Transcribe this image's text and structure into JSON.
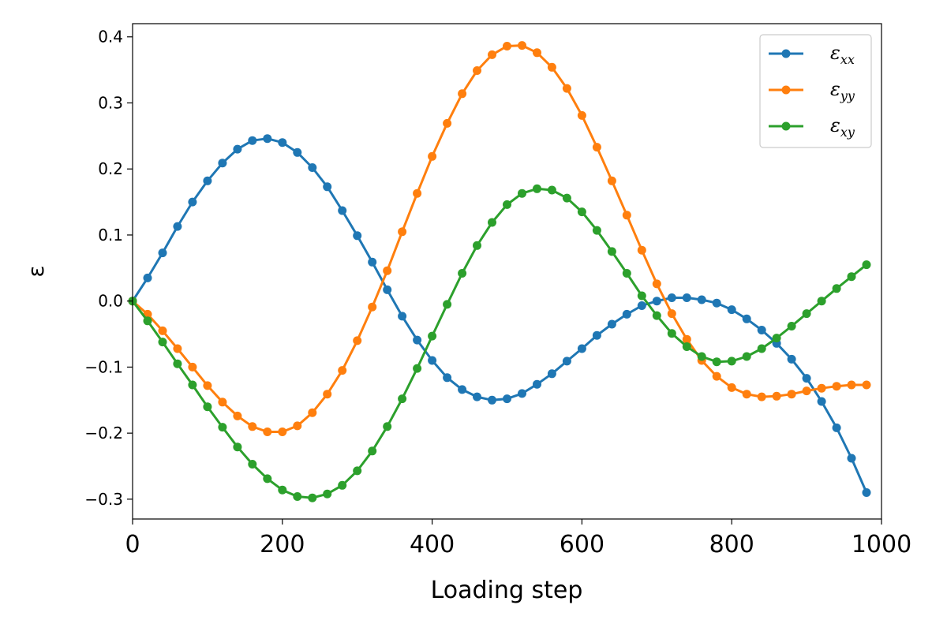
{
  "chart_data": {
    "type": "line",
    "title": "",
    "xlabel": "Loading step",
    "ylabel": "ε",
    "xlim": [
      0,
      1000
    ],
    "ylim": [
      -0.33,
      0.42
    ],
    "xticks": [
      0,
      200,
      400,
      600,
      800,
      1000
    ],
    "xtick_labels": [
      "0",
      "200",
      "400",
      "600",
      "800",
      "1000"
    ],
    "yticks": [
      -0.3,
      -0.2,
      -0.1,
      0.0,
      0.1,
      0.2,
      0.3,
      0.4
    ],
    "ytick_labels": [
      "−0.3",
      "−0.2",
      "−0.1",
      "0.0",
      "0.1",
      "0.2",
      "0.3",
      "0.4"
    ],
    "grid": false,
    "legend_position": "top-right",
    "x": [
      0,
      20,
      40,
      60,
      80,
      100,
      120,
      140,
      160,
      180,
      200,
      220,
      240,
      260,
      280,
      300,
      320,
      340,
      360,
      380,
      400,
      420,
      440,
      460,
      480,
      500,
      520,
      540,
      560,
      580,
      600,
      620,
      640,
      660,
      680,
      700,
      720,
      740,
      760,
      780,
      800,
      820,
      840,
      860,
      880,
      900,
      920,
      940,
      960,
      980
    ],
    "series": [
      {
        "name": "ε",
        "sub": "xx",
        "color": "#1f77b4",
        "values": [
          0.0,
          0.035,
          0.073,
          0.113,
          0.15,
          0.182,
          0.209,
          0.23,
          0.243,
          0.246,
          0.24,
          0.225,
          0.202,
          0.173,
          0.137,
          0.099,
          0.059,
          0.017,
          -0.023,
          -0.059,
          -0.09,
          -0.116,
          -0.134,
          -0.145,
          -0.15,
          -0.148,
          -0.14,
          -0.126,
          -0.11,
          -0.091,
          -0.072,
          -0.052,
          -0.035,
          -0.02,
          -0.007,
          0.0,
          0.005,
          0.005,
          0.002,
          -0.003,
          -0.013,
          -0.027,
          -0.044,
          -0.064,
          -0.088,
          -0.117,
          -0.152,
          -0.192,
          -0.238,
          -0.29
        ]
      },
      {
        "name": "ε",
        "sub": "yy",
        "color": "#ff7f0e",
        "values": [
          0.0,
          -0.02,
          -0.045,
          -0.072,
          -0.1,
          -0.128,
          -0.153,
          -0.174,
          -0.19,
          -0.198,
          -0.198,
          -0.189,
          -0.169,
          -0.141,
          -0.105,
          -0.06,
          -0.009,
          0.046,
          0.105,
          0.163,
          0.219,
          0.269,
          0.314,
          0.349,
          0.373,
          0.386,
          0.387,
          0.376,
          0.354,
          0.322,
          0.281,
          0.233,
          0.182,
          0.13,
          0.077,
          0.026,
          -0.019,
          -0.058,
          -0.09,
          -0.114,
          -0.131,
          -0.141,
          -0.145,
          -0.144,
          -0.141,
          -0.136,
          -0.132,
          -0.129,
          -0.127,
          -0.127
        ]
      },
      {
        "name": "ε",
        "sub": "xy",
        "color": "#2ca02c",
        "values": [
          0.0,
          -0.03,
          -0.062,
          -0.095,
          -0.127,
          -0.16,
          -0.191,
          -0.221,
          -0.247,
          -0.269,
          -0.286,
          -0.296,
          -0.298,
          -0.292,
          -0.279,
          -0.257,
          -0.227,
          -0.19,
          -0.148,
          -0.102,
          -0.053,
          -0.005,
          0.042,
          0.084,
          0.119,
          0.146,
          0.163,
          0.17,
          0.168,
          0.156,
          0.135,
          0.107,
          0.075,
          0.042,
          0.008,
          -0.022,
          -0.049,
          -0.069,
          -0.084,
          -0.092,
          -0.091,
          -0.084,
          -0.072,
          -0.056,
          -0.038,
          -0.019,
          0.0,
          0.019,
          0.037,
          0.055
        ]
      }
    ]
  }
}
